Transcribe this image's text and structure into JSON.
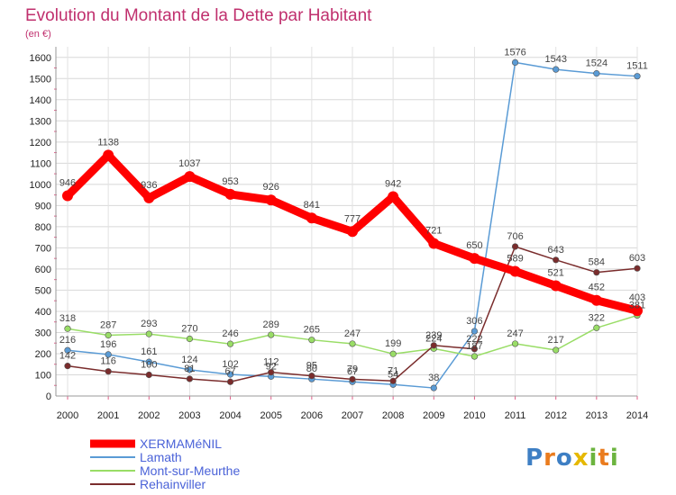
{
  "chart_data": {
    "type": "line",
    "title": "Evolution du Montant de la Dette par Habitant",
    "subtitle": "(en €)",
    "xlabel": "",
    "ylabel": "",
    "x": [
      "2000",
      "2001",
      "2002",
      "2003",
      "2004",
      "2005",
      "2006",
      "2007",
      "2008",
      "2009",
      "2010",
      "2011",
      "2012",
      "2013",
      "2014"
    ],
    "ylim": [
      0,
      1650
    ],
    "yticks": [
      0,
      100,
      200,
      300,
      400,
      500,
      600,
      700,
      800,
      900,
      1000,
      1100,
      1200,
      1300,
      1400,
      1500,
      1600
    ],
    "grid": true,
    "legend_position": "bottom-left",
    "series": [
      {
        "name": "XERMAMéNIL",
        "color": "#ff0000",
        "values": [
          946,
          1138,
          936,
          1037,
          953,
          926,
          841,
          777,
          942,
          721,
          650,
          589,
          521,
          452,
          403
        ],
        "labels": [
          "946",
          "1138",
          "936",
          "1037",
          "953",
          "926",
          "841",
          "777",
          "942",
          "721",
          "650",
          "589",
          "521",
          "452",
          "403"
        ]
      },
      {
        "name": "Lamath",
        "color": "#5a9bd5",
        "values": [
          216,
          196,
          161,
          124,
          102,
          92,
          80,
          67,
          54,
          38,
          306,
          1576,
          1543,
          1524,
          1511
        ],
        "labels": [
          "216",
          "196",
          "161",
          "124",
          "102",
          "92",
          "80",
          "67",
          "54",
          "38",
          "306",
          "1576",
          "1543",
          "1524",
          "1511"
        ]
      },
      {
        "name": "Mont-sur-Meurthe",
        "color": "#99dd66",
        "values": [
          318,
          287,
          293,
          270,
          246,
          289,
          265,
          247,
          199,
          224,
          187,
          247,
          217,
          322,
          381
        ],
        "labels": [
          "318",
          "287",
          "293",
          "270",
          "246",
          "289",
          "265",
          "247",
          "199",
          "224",
          "187",
          "247",
          "217",
          "322",
          "381"
        ]
      },
      {
        "name": "Rehainviller",
        "color": "#7a2c2c",
        "values": [
          142,
          116,
          100,
          81,
          67,
          112,
          95,
          79,
          71,
          239,
          222,
          706,
          643,
          584,
          603
        ],
        "labels": [
          "142",
          "116",
          "100",
          "81",
          "67",
          "112",
          "95",
          "79",
          "71",
          "239",
          "222",
          "706",
          "643",
          "584",
          "603"
        ]
      }
    ]
  },
  "brand": {
    "logo_text": "Proxiti"
  }
}
